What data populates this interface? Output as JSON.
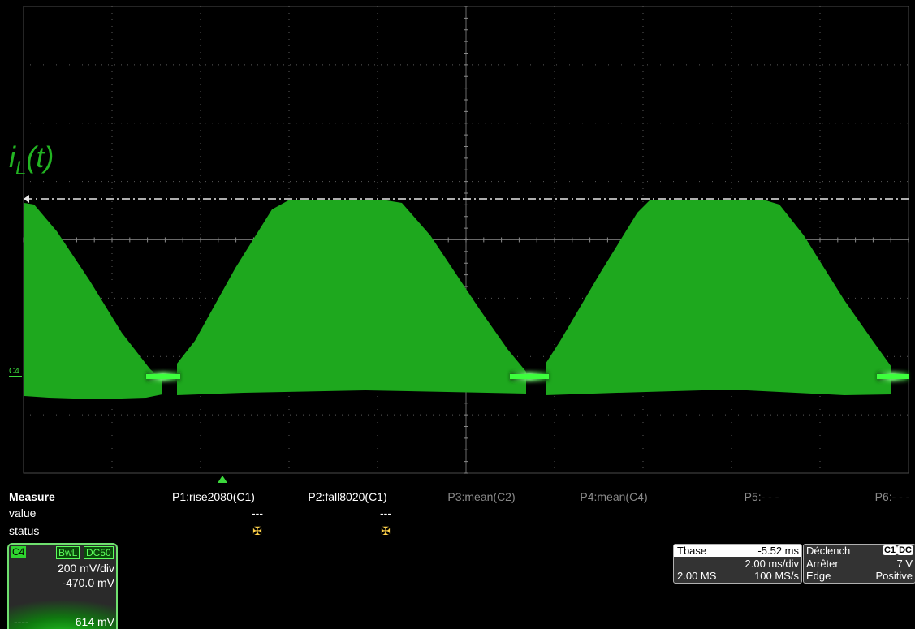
{
  "trace": {
    "label_base": "i",
    "label_sub": "L",
    "label_tail": "(t)",
    "channel_marker": "C4",
    "color": "#1ea81e"
  },
  "measure": {
    "title": "Measure",
    "row_value": "value",
    "row_status": "status",
    "params": [
      {
        "name": "P1:rise2080(C1)",
        "value": "---",
        "status": "✠",
        "active": true
      },
      {
        "name": "P2:fall8020(C1)",
        "value": "---",
        "status": "✠",
        "active": true
      },
      {
        "name": "P3:mean(C2)",
        "value": "",
        "status": "",
        "active": false
      },
      {
        "name": "P4:mean(C4)",
        "value": "",
        "status": "",
        "active": false
      },
      {
        "name": "P5:- - -",
        "value": "",
        "status": "",
        "active": false
      },
      {
        "name": "P6:- - -",
        "value": "",
        "status": "",
        "active": false
      }
    ]
  },
  "channel": {
    "name": "C4",
    "bwl": "BwL",
    "coupling": "DC50",
    "scale": "200 mV/div",
    "offset": "-470.0 mV",
    "footer_left": "----",
    "footer_value": "614 mV"
  },
  "timebase": {
    "label": "Tbase",
    "delay": "-5.52 ms",
    "scale": "2.00 ms/div",
    "points": "2.00 MS",
    "rate": "100 MS/s"
  },
  "trigger": {
    "label": "Déclench",
    "source_badge": "C1",
    "coupling_badge": "DC",
    "mode": "Arrêter",
    "level": "7 V",
    "type": "Edge",
    "slope": "Positive"
  }
}
